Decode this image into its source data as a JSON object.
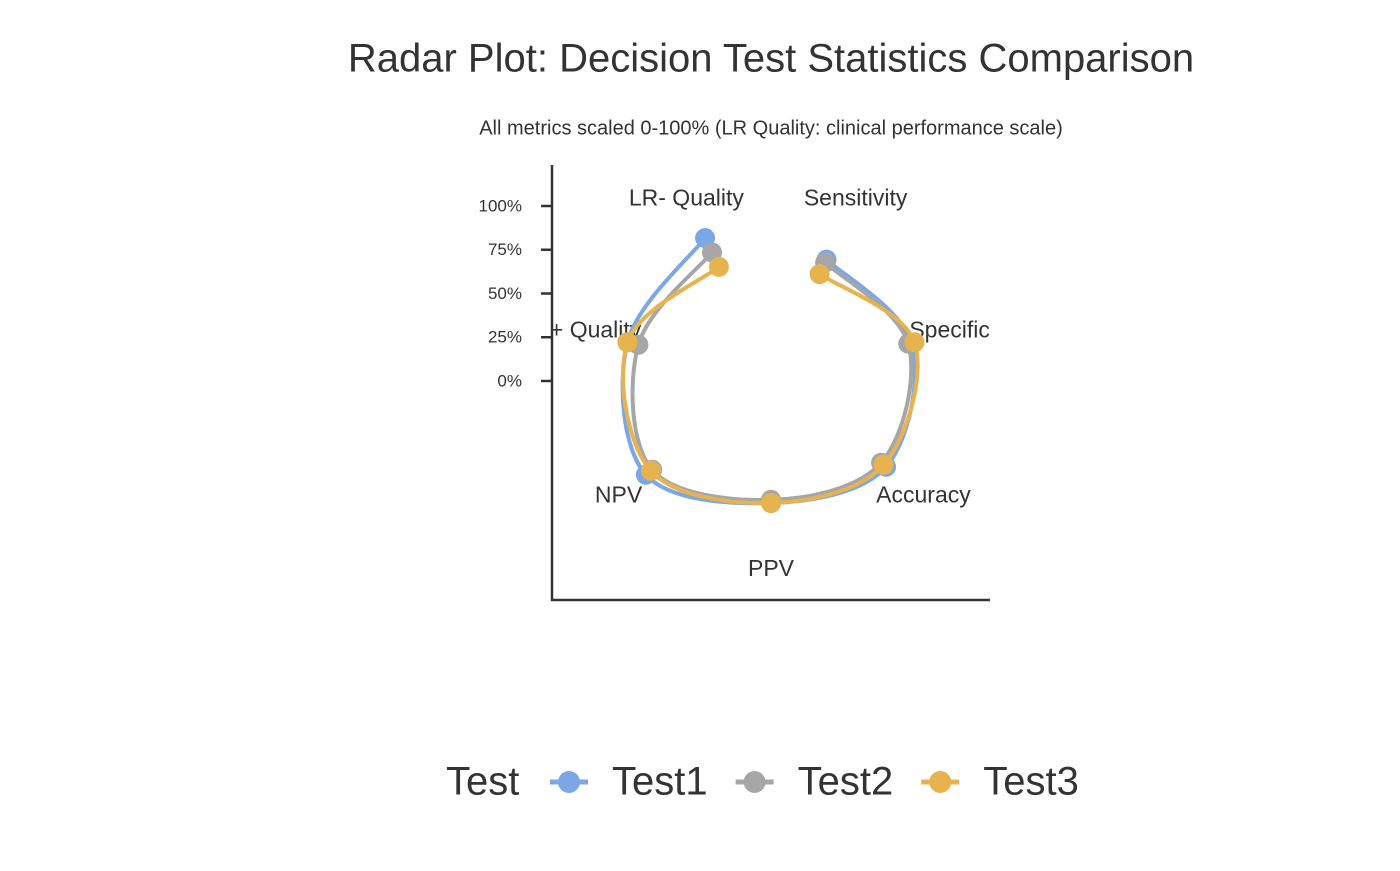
{
  "chart_data": {
    "type": "radar",
    "title": "Radar Plot: Decision Test Statistics Comparison",
    "subtitle": "All metrics scaled 0-100% (LR Quality: clinical performance scale)",
    "categories": [
      "Sensitivity",
      "Specificity",
      "Accuracy",
      "PPV",
      "NPV",
      "LR+ Quality",
      "LR- Quality"
    ],
    "ylim": [
      0,
      100
    ],
    "yticks": [
      {
        "value": 0,
        "label": "0%"
      },
      {
        "value": 25,
        "label": "25%"
      },
      {
        "value": 50,
        "label": "50%"
      },
      {
        "value": 75,
        "label": "75%"
      },
      {
        "value": 100,
        "label": "100%"
      }
    ],
    "legend_title": "Test",
    "series": [
      {
        "name": "Test1",
        "color": "#7ba7e6",
        "values": [
          80,
          90,
          92,
          80,
          100,
          92,
          95
        ]
      },
      {
        "name": "Test2",
        "color": "#a6a6a6",
        "values": [
          78,
          88,
          88,
          78,
          95,
          85,
          85
        ]
      },
      {
        "name": "Test3",
        "color": "#e6b34f",
        "values": [
          70,
          92,
          90,
          80,
          96,
          92,
          75
        ]
      }
    ]
  }
}
